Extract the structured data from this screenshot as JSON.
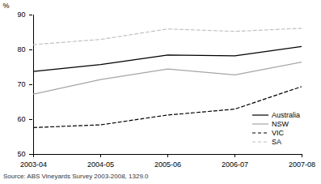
{
  "chart_data": {
    "type": "line",
    "ylabel": "%",
    "source": "Source: ABS Vineyards Survey 2003-2008, 1329.0",
    "categories": [
      "2003-04",
      "2004-05",
      "2005-06",
      "2006-07",
      "2007-08"
    ],
    "series": [
      {
        "name": "Australia",
        "color": "#000000",
        "line_style": "solid",
        "values": [
          73.8,
          75.8,
          78.5,
          78.3,
          81.0
        ]
      },
      {
        "name": "NSW",
        "color": "#a6a6a6",
        "line_style": "solid",
        "values": [
          67.3,
          71.5,
          74.5,
          72.8,
          76.5
        ]
      },
      {
        "name": "VIC",
        "color": "#000000",
        "line_style": "dashed",
        "values": [
          57.7,
          58.5,
          61.3,
          63.0,
          69.5
        ]
      },
      {
        "name": "SA",
        "color": "#c0c0c0",
        "line_style": "dashed",
        "values": [
          81.5,
          83.0,
          86.0,
          85.3,
          86.2
        ]
      }
    ],
    "ylim": [
      50,
      90
    ],
    "yticks": [
      50,
      60,
      70,
      80,
      90
    ],
    "legend": "bottom-right"
  }
}
